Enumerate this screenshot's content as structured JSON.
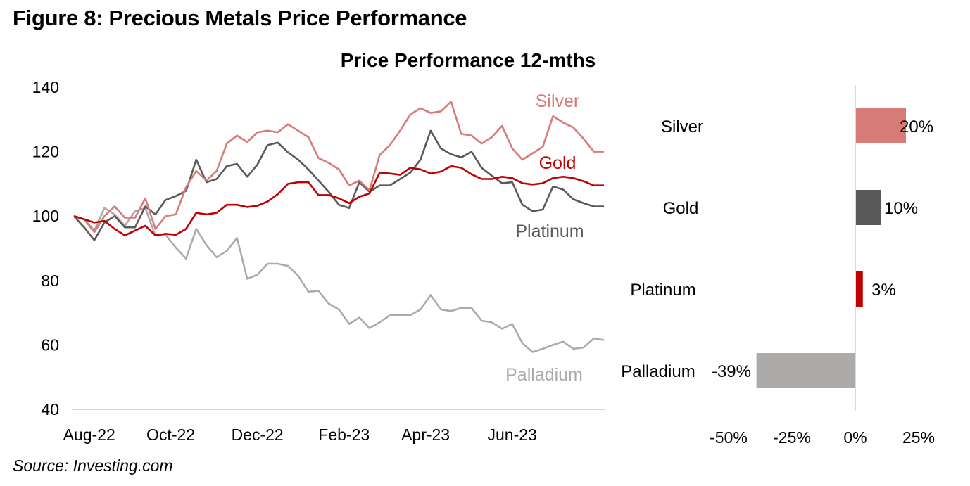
{
  "figure_title": "Figure 8: Precious Metals Price Performance",
  "source": "Source: Investing.com",
  "chart_data": [
    {
      "type": "line",
      "title": "Price Performance 12-mths",
      "xlabel": "",
      "ylabel": "",
      "ylim": [
        40,
        140
      ],
      "yticks": [
        40,
        60,
        80,
        100,
        120,
        140
      ],
      "xtick_labels": [
        "Aug-22",
        "Oct-22",
        "Dec-22",
        "Feb-23",
        "Apr-23",
        "Jun-23"
      ],
      "xtick_index": [
        1.5,
        9.5,
        18,
        26.5,
        34.5,
        43
      ],
      "grid": false,
      "legend": "inline-labels-right",
      "series": [
        {
          "name": "Silver",
          "color": "#d77b78",
          "values": [
            100,
            99,
            95,
            100,
            103,
            99.5,
            99.5,
            105.5,
            96,
            100,
            100.5,
            109,
            114,
            111,
            114,
            122.5,
            125,
            123,
            126,
            126.5,
            126,
            128.5,
            126.5,
            124.5,
            118,
            116.5,
            114.5,
            109.5,
            111,
            108,
            119,
            122,
            126.5,
            131.5,
            133.5,
            132,
            132.5,
            135.5,
            125.5,
            125,
            122.5,
            124.5,
            128,
            121,
            117.5,
            119.5,
            121.5,
            131,
            129,
            127.5,
            124,
            120,
            120
          ]
        },
        {
          "name": "Gold",
          "color": "#c00000",
          "values": [
            100,
            99,
            98,
            98.5,
            96,
            94,
            95.5,
            97,
            94,
            94.5,
            94.2,
            96,
            101,
            100.5,
            101,
            103.5,
            103.5,
            102.8,
            103.2,
            104.5,
            106.8,
            110,
            110.5,
            110.5,
            106.5,
            106.5,
            105.5,
            104,
            106,
            107,
            113.5,
            113.2,
            112.8,
            115,
            114.5,
            113.2,
            113.8,
            115.5,
            115,
            113,
            111.5,
            111.5,
            112.2,
            111.8,
            110.2,
            109.8,
            110.2,
            111.8,
            112.2,
            111.8,
            110.8,
            109.5,
            109.5
          ]
        },
        {
          "name": "Platinum",
          "color": "#595959",
          "values": [
            100,
            96.5,
            92.5,
            98,
            100,
            96.5,
            96.5,
            103,
            100.5,
            105,
            106.2,
            107.8,
            117.5,
            110.5,
            111.5,
            115.5,
            116.2,
            112.2,
            116,
            122,
            122.8,
            119.8,
            117.5,
            114.5,
            111,
            107.5,
            103.5,
            102.5,
            110.5,
            107.5,
            109.5,
            109.5,
            111.5,
            113.5,
            117.5,
            126.5,
            121,
            119.2,
            118.2,
            120,
            115,
            112.5,
            110.2,
            110.5,
            103.5,
            101.5,
            102,
            109.2,
            108.2,
            105.2,
            104,
            103,
            103
          ]
        },
        {
          "name": "Palladium",
          "color": "#adaaaa",
          "values": [
            100,
            99,
            95.5,
            102.5,
            100.5,
            97,
            101.5,
            102.5,
            94,
            94.2,
            90.2,
            86.8,
            96,
            91,
            87.2,
            89.2,
            93.2,
            80.5,
            81.8,
            85.2,
            85.2,
            84.5,
            81.5,
            76.5,
            76.8,
            72.8,
            71,
            66.5,
            68.5,
            65.2,
            67,
            69.2,
            69.2,
            69.2,
            71,
            75.5,
            71,
            70.5,
            71.5,
            71.5,
            67.5,
            67,
            65,
            66.5,
            60.5,
            57.8,
            58.8,
            60,
            61,
            58.8,
            59.2,
            62,
            61.5
          ]
        }
      ]
    },
    {
      "type": "bar",
      "orientation": "horizontal",
      "title": "",
      "categories": [
        "Silver",
        "Gold",
        "Platinum",
        "Palladium"
      ],
      "values": [
        20,
        10,
        3,
        -39
      ],
      "value_labels": [
        "20%",
        "10%",
        "3%",
        "-39%"
      ],
      "colors": [
        "#d77b78",
        "#595959",
        "#c00000",
        "#adaaaa"
      ],
      "xlim": [
        -50,
        25
      ],
      "xticks": [
        -50,
        -25,
        0,
        25
      ],
      "xtick_labels": [
        "-50%",
        "-25%",
        "0%",
        "25%"
      ],
      "xlabel": "",
      "ylabel": "",
      "grid": false,
      "legend": "none"
    }
  ]
}
